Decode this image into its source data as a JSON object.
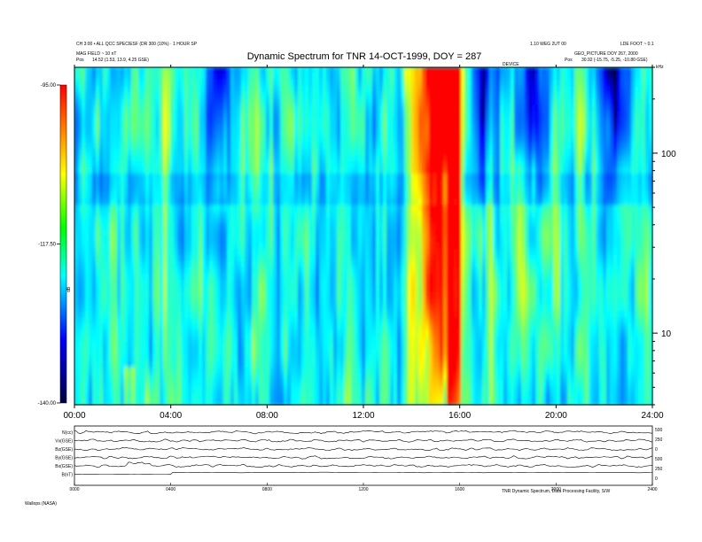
{
  "header": {
    "left_line1": "CH 3:00 • ALL QCC SPECIESF (DR 300 (10%) · 1 HOUR SP",
    "left_line2": "MAG FIELD ~ 10 nT",
    "left_line3": "Pos",
    "left_line4": "14.52 (1.53, 13.9, 4.25 GSE)",
    "right_line1": "1.10 WEG 2UT 00",
    "right_line2": "LDE FOOT ~ 0.1",
    "right_line3": "GEO_PICTURE DOY 267, 2000",
    "right_line4": "Pos",
    "right_line5": "30.92 (-15.75, -5.25, -10.80 GSE)",
    "small_center": "DEVICE"
  },
  "chart_data": {
    "type": "heatmap",
    "title": "Dynamic Spectrum for TNR 14-OCT-1999, DOY = 287",
    "x_ticks": [
      "00:00",
      "04:00",
      "08:00",
      "12:00",
      "16:00",
      "20:00",
      "24:00"
    ],
    "x_range_hours": [
      0,
      24
    ],
    "y_unit": "kHz",
    "y_scale": "log",
    "y_ticks": [
      "100",
      "10"
    ],
    "y_tick_values": [
      100,
      10
    ],
    "y_range": [
      4,
      300
    ],
    "colorbar": {
      "labels": [
        "-95.00",
        "-117.50",
        "-140.00"
      ],
      "label_values": [
        -95,
        -117.5,
        -140
      ],
      "unit": "dB",
      "colors": [
        "#ff0000",
        "#ffff00",
        "#00ff00",
        "#00ffff",
        "#0000ff",
        "#000040"
      ]
    },
    "intense_hours": [
      14.0,
      15.0,
      16.0
    ],
    "quiet_hours": [
      6.0,
      17.0,
      19.0,
      22.5
    ],
    "lower_panel": {
      "series_labels": [
        "B(nT)",
        "Bx(GSE)",
        "By(GSE)",
        "Bz(GSE)",
        "Vx(GSE)",
        "N(cc)"
      ],
      "x_ticks": [
        "0000",
        "0400",
        "0800",
        "1200",
        "1600",
        "2000",
        "2400"
      ],
      "right_labels": [
        "500",
        "250",
        "0",
        "500",
        "250",
        "0"
      ],
      "footer_left": "Wallops (NASA)",
      "footer_right": "TNR Dynamic Spectrum, Data Processing Facility, S/W"
    }
  }
}
